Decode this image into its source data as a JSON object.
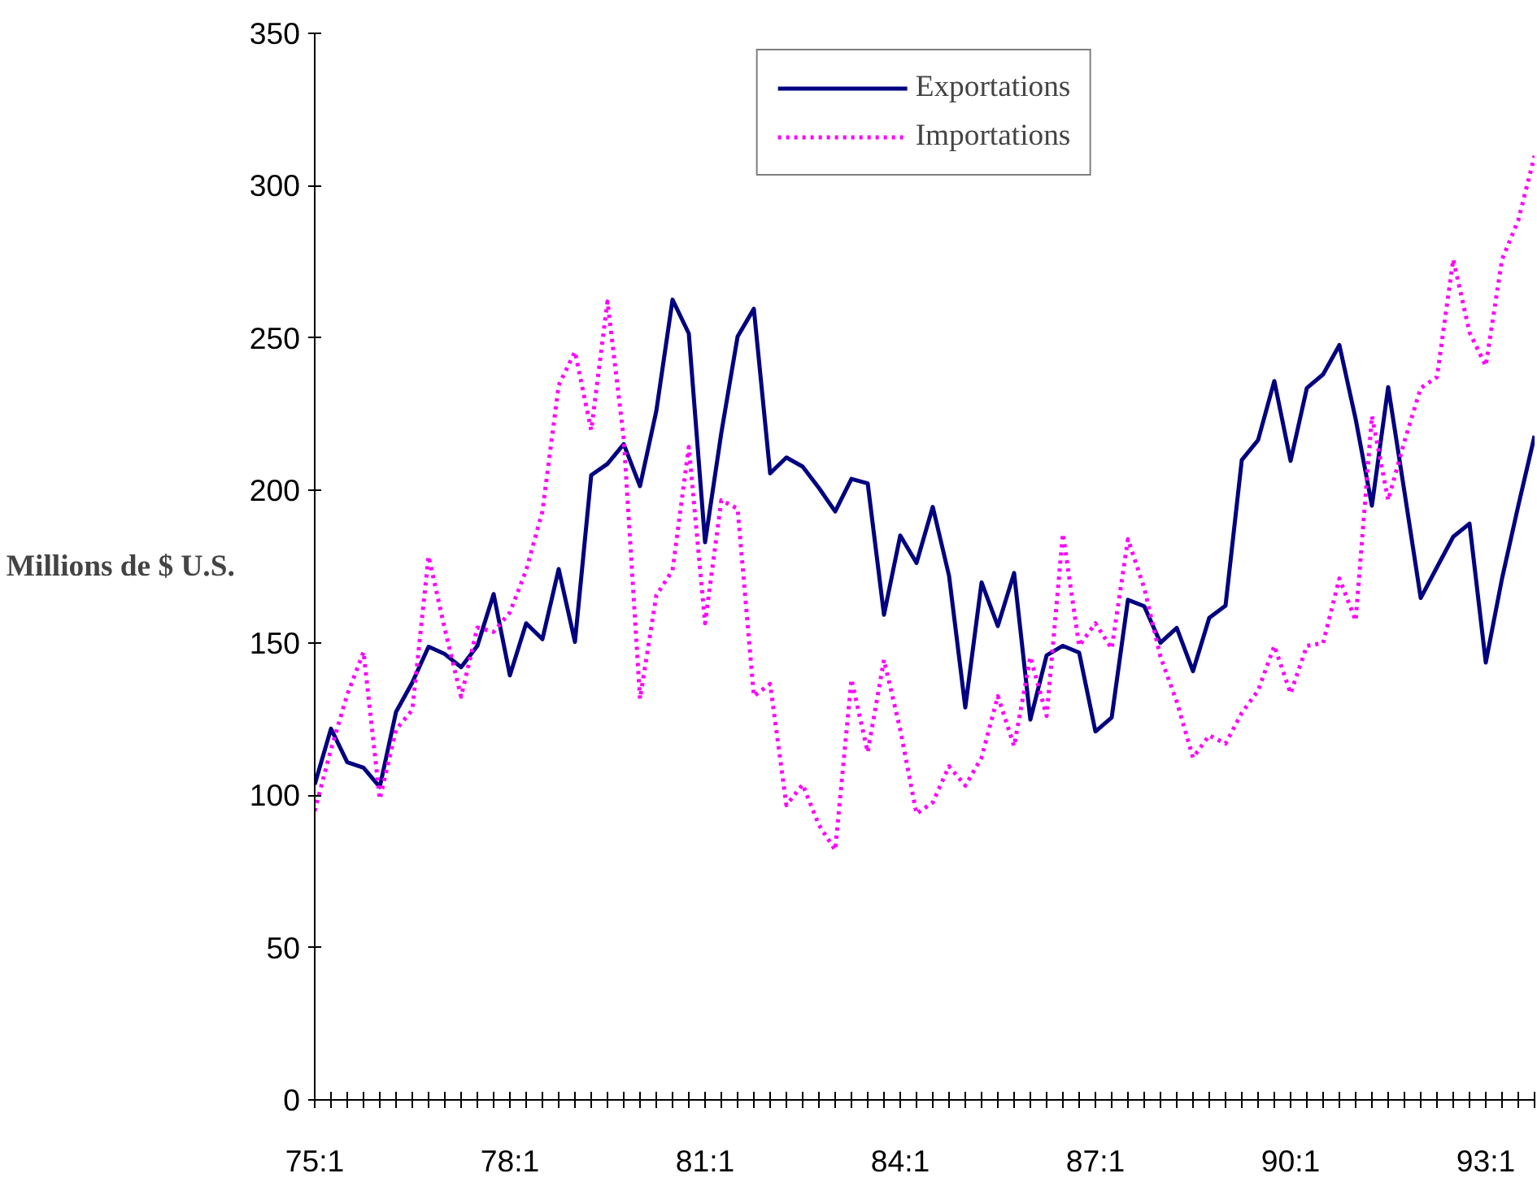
{
  "chart_data": {
    "type": "line",
    "ylabel": "Millions de $ U.S.",
    "categories": [
      "75:1",
      null,
      null,
      null,
      null,
      null,
      null,
      null,
      null,
      null,
      null,
      null,
      "78:1",
      null,
      null,
      null,
      null,
      null,
      null,
      null,
      null,
      null,
      null,
      null,
      "81:1",
      null,
      null,
      null,
      null,
      null,
      null,
      null,
      null,
      null,
      null,
      null,
      "84:1",
      null,
      null,
      null,
      null,
      null,
      null,
      null,
      null,
      null,
      null,
      null,
      "87:1",
      null,
      null,
      null,
      null,
      null,
      null,
      null,
      null,
      null,
      null,
      null,
      "90:1",
      null,
      null,
      null,
      null,
      null,
      null,
      null,
      null,
      null,
      null,
      null,
      "93:1",
      null,
      null,
      null
    ],
    "series": [
      {
        "name": "Exportations",
        "color": "#000080",
        "line_style": "solid",
        "values": [
          103.5,
          121.8,
          110.8,
          109,
          102.7,
          127.3,
          137,
          148.7,
          146.3,
          142,
          149,
          166,
          139.3,
          156.4,
          151.2,
          174.2,
          150.3,
          205,
          208.7,
          215.2,
          201.4,
          226,
          262.6,
          251.5,
          183,
          218.9,
          250.5,
          259.6,
          205.6,
          210.8,
          207.8,
          200.8,
          193.1,
          203.8,
          202.3,
          159.2,
          185.2,
          176.2,
          194.6,
          172,
          128.8,
          169.8,
          155.5,
          172.9,
          124.8,
          145.9,
          149,
          146.8,
          120.9,
          125.5,
          164.1,
          162,
          150,
          154.9,
          140.7,
          158.2,
          162.2,
          210,
          216.5,
          235.9,
          209.7,
          233.6,
          238.1,
          247.7,
          223.4,
          195,
          233.9,
          199.6,
          164.7,
          174.8,
          184.8,
          189.1,
          143.5,
          171.1,
          195,
          217.9
        ]
      },
      {
        "name": "Importations",
        "color": "#ff00ff",
        "line_style": "dotted",
        "values": [
          94.8,
          115,
          133,
          147,
          98.7,
          121.5,
          128,
          178.4,
          154.5,
          132.3,
          155,
          153.6,
          160,
          173.8,
          193.1,
          234.5,
          245.5,
          219.8,
          262,
          217,
          131.6,
          165.5,
          173.8,
          214.3,
          156.4,
          196.8,
          194,
          132.5,
          136.5,
          96.7,
          103.5,
          90.2,
          82,
          138,
          114.1,
          144.4,
          121.5,
          93.9,
          97.6,
          109.5,
          103.1,
          112.3,
          132.5,
          116.1,
          145.4,
          126,
          185.8,
          149,
          156.4,
          148.1,
          184,
          168,
          145.4,
          130.7,
          112.3,
          119.6,
          116.9,
          127,
          134.3,
          149,
          133.4,
          149,
          149.9,
          171.1,
          157.3,
          224.4,
          196.8,
          216.1,
          233.6,
          237.2,
          275.8,
          251.9,
          240.9,
          275.8,
          288.7,
          309.8
        ]
      }
    ],
    "ylim": [
      0,
      350
    ],
    "yticks": [
      0,
      50,
      100,
      150,
      200,
      250,
      300,
      350
    ],
    "grid": false,
    "legend": "top"
  }
}
